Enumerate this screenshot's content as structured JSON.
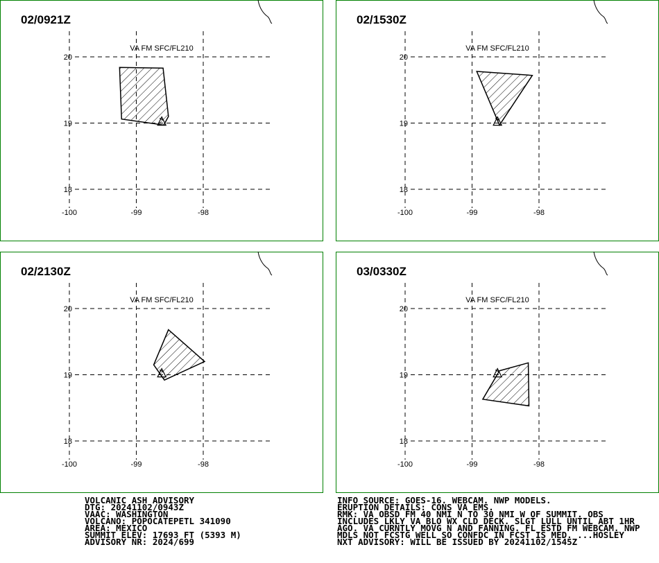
{
  "xticks": [
    -100,
    -99,
    -98
  ],
  "yticks": [
    18,
    19,
    20
  ],
  "volcano": {
    "lon": -98.62,
    "lat": 19.02
  },
  "panels": [
    {
      "time": "02/0921Z",
      "label": "VA FM SFC/FL210",
      "polygon": {
        "lon": [
          -99.25,
          -98.6,
          -98.52,
          -98.59,
          -99.22
        ],
        "lat": [
          19.84,
          19.83,
          19.1,
          18.97,
          19.06
        ]
      }
    },
    {
      "time": "02/1530Z",
      "label": "VA FM SFC/FL210",
      "polygon": {
        "lon": [
          -98.93,
          -98.1,
          -98.59
        ],
        "lat": [
          19.78,
          19.72,
          18.97
        ]
      }
    },
    {
      "time": "02/2130Z",
      "label": "VA FM SFC/FL210",
      "polygon": {
        "lon": [
          -98.52,
          -97.98,
          -98.58,
          -98.74
        ],
        "lat": [
          19.68,
          19.2,
          18.92,
          19.15
        ]
      }
    },
    {
      "time": "03/0330Z",
      "label": "VA FM SFC/FL210",
      "polygon": {
        "lon": [
          -98.59,
          -98.16,
          -98.15,
          -98.84
        ],
        "lat": [
          19.06,
          19.18,
          18.53,
          18.63
        ]
      }
    }
  ],
  "advisory": {
    "left": [
      "VOLCANIC ASH ADVISORY",
      "DTG: 20241102/0943Z",
      "VAAC: WASHINGTON",
      "VOLCANO: POPOCATEPETL 341090",
      "AREA: MEXICO",
      "SUMMIT ELEV: 17693 FT (5393 M)",
      "ADVISORY NR: 2024/699"
    ],
    "right": [
      "INFO SOURCE: GOES-16. WEBCAM. NWP MODELS.",
      "ERUPTION DETAILS: CONS VA EMS.",
      "RMK: VA OBSD FM 40 NMI N TO 30 NMI W OF SUMMIT. OBS",
      "INCLUDES LKLY VA BLO WX CLD DECK. SLGT LULL UNTIL ABT 1HR",
      "AGO. VA CURNTLY MOVG N AND FANNING. FL ESTD FM WEBCAM. NWP",
      "MDLS NOT FCSTG WELL SO CONFDC IN FCST IS MED. ...HOSLEY",
      "NXT ADVISORY: WILL BE ISSUED BY 20241102/1545Z"
    ]
  }
}
